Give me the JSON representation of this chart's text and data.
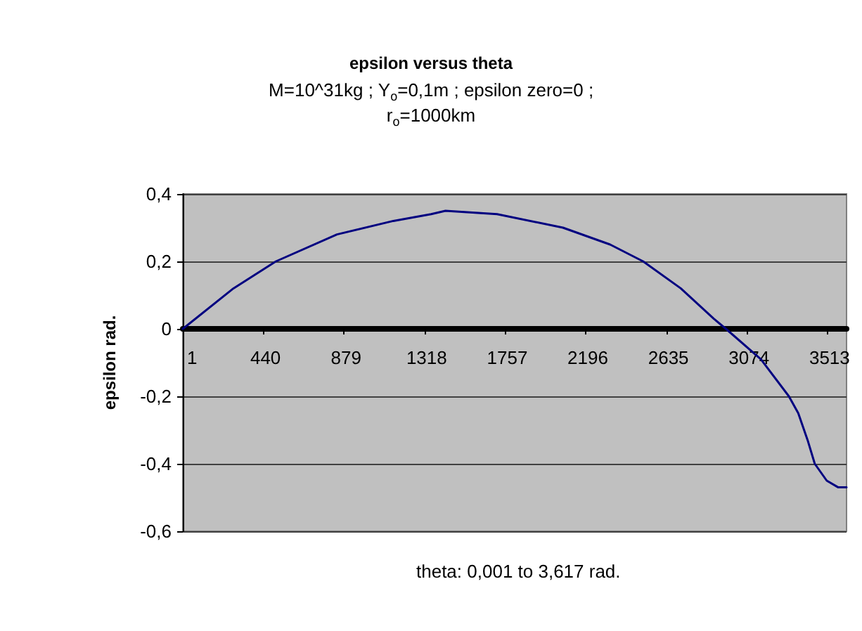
{
  "chart_data": {
    "type": "line",
    "title": "epsilon versus theta",
    "subtitle": "M=10^31kg ; Y$_{o}$=0,1m ; epsilon zero=0 ;\nr$_{o}$=1000km",
    "xlabel": "theta: 0,001 to 3,617 rad.",
    "ylabel": "epsilon rad.",
    "x": [
      1,
      277,
      508,
      841,
      1148,
      1354,
      1432,
      1713,
      2072,
      2329,
      2509,
      2714,
      2894,
      2960,
      3150,
      3303,
      3354,
      3405,
      3444,
      3509,
      3572,
      3617
    ],
    "series": [
      {
        "color": "#000080",
        "values": [
          0,
          0.12,
          0.2,
          0.28,
          0.32,
          0.34,
          0.35,
          0.34,
          0.3,
          0.25,
          0.2,
          0.12,
          0.03,
          0,
          -0.09,
          -0.2,
          -0.25,
          -0.33,
          -0.4,
          -0.45,
          -0.47,
          -0.47
        ]
      }
    ],
    "xlim": [
      1,
      3617
    ],
    "xticks": [
      1,
      440,
      879,
      1318,
      1757,
      2196,
      2635,
      3074,
      3513
    ],
    "ylim": [
      -0.6,
      0.4
    ],
    "yticks": [
      {
        "value": -0.6,
        "label": "-0,6"
      },
      {
        "value": -0.4,
        "label": "-0,4"
      },
      {
        "value": -0.2,
        "label": "-0,2"
      },
      {
        "value": 0,
        "label": "0"
      },
      {
        "value": 0.2,
        "label": "0,2"
      },
      {
        "value": 0.4,
        "label": "0,4"
      }
    ],
    "grid": "y",
    "marker": "none",
    "line_style": "solid"
  }
}
